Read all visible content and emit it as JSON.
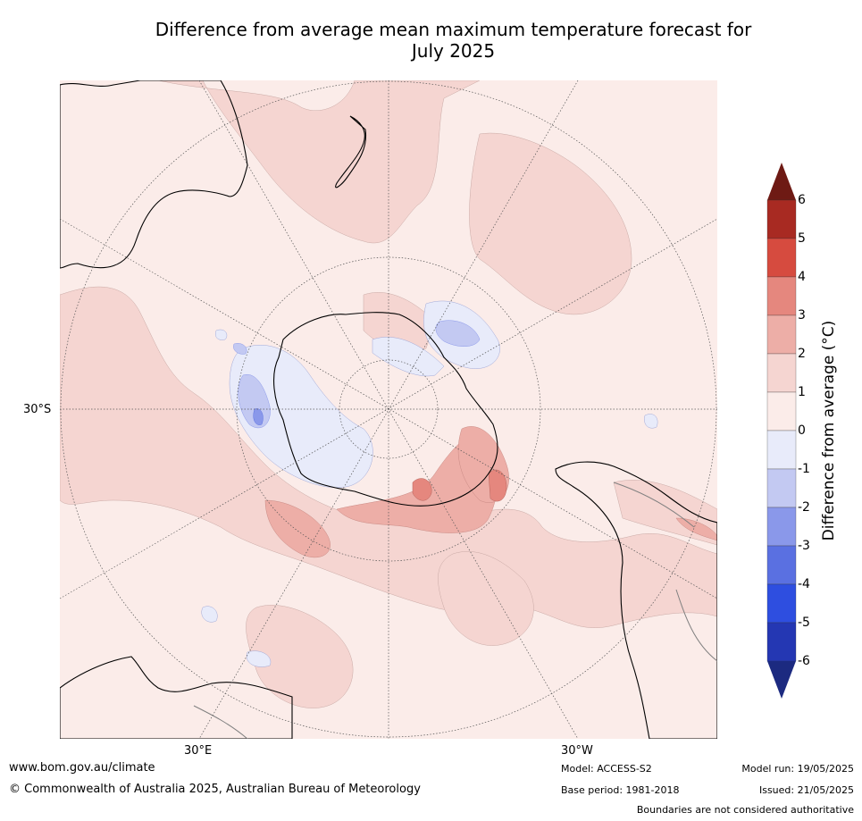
{
  "title_line1": "Difference from average mean maximum temperature forecast for",
  "title_line2": "July 2025",
  "map": {
    "projection": "south-polar-stereographic",
    "lat_label": "30°S",
    "lon_labels": [
      "30°E",
      "30°W"
    ],
    "colors": {
      "land_outline": "#000000",
      "border": "#808080",
      "grid": "#555555",
      "background_class": "#fbece9"
    }
  },
  "colorbar": {
    "title": "Difference from average (°C)",
    "ticks": [
      "6",
      "5",
      "4",
      "3",
      "2",
      "1",
      "0",
      "-1",
      "-2",
      "-3",
      "-4",
      "-5",
      "-6"
    ],
    "bins": [
      {
        "range": "above 6",
        "color": "#6e1a14"
      },
      {
        "range": "5 to 6",
        "color": "#a82a22"
      },
      {
        "range": "4 to 5",
        "color": "#d64b3f"
      },
      {
        "range": "3 to 4",
        "color": "#e5877e"
      },
      {
        "range": "2 to 3",
        "color": "#edaea7"
      },
      {
        "range": "1 to 2",
        "color": "#f5d5d1"
      },
      {
        "range": "0 to 1",
        "color": "#fbece9"
      },
      {
        "range": "-1 to 0",
        "color": "#e8ebfa"
      },
      {
        "range": "-2 to -1",
        "color": "#c3c9f2"
      },
      {
        "range": "-3 to -2",
        "color": "#8a98ea"
      },
      {
        "range": "-4 to -3",
        "color": "#5a70e1"
      },
      {
        "range": "-5 to -4",
        "color": "#2e4ee0"
      },
      {
        "range": "-6 to -5",
        "color": "#2437b3"
      },
      {
        "range": "below -6",
        "color": "#1c2a80"
      }
    ]
  },
  "footer": {
    "website": "www.bom.gov.au/climate",
    "copyright": "© Commonwealth of Australia 2025, Australian Bureau of Meteorology",
    "model": "Model: ACCESS-S2",
    "base_period": "Base period: 1981-2018",
    "model_run": "Model run: 19/05/2025",
    "issued": "Issued: 21/05/2025",
    "disclaimer": "Boundaries are not considered authoritative"
  }
}
